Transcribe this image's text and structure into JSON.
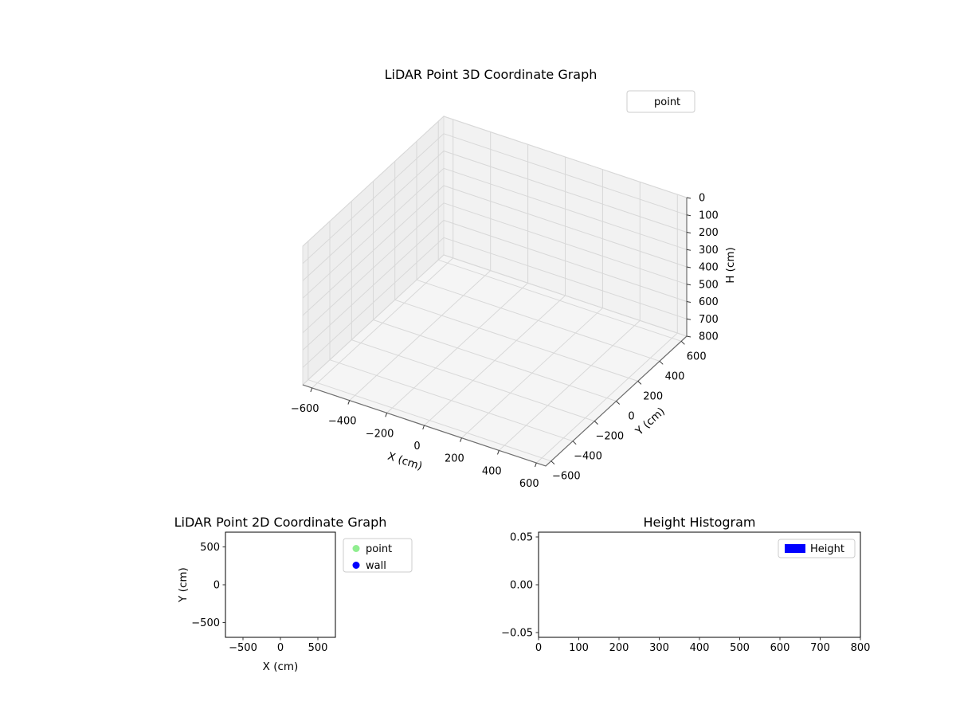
{
  "figure": {
    "background": "#ffffff"
  },
  "chart_data": [
    {
      "type": "scatter3d",
      "title": "LiDAR Point 3D Coordinate Graph",
      "xlabel": "X (cm)",
      "ylabel": "Y (cm)",
      "zlabel": "H (cm)",
      "xlim": [
        -650,
        650
      ],
      "ylim": [
        -650,
        650
      ],
      "zlim": [
        0,
        800
      ],
      "z_axis_inverted": true,
      "grid": true,
      "x_ticks": [
        "−600",
        "−400",
        "−200",
        "0",
        "200",
        "400",
        "600"
      ],
      "y_ticks": [
        "−600",
        "−400",
        "−200",
        "0",
        "200",
        "400",
        "600"
      ],
      "z_ticks": [
        "0",
        "100",
        "200",
        "300",
        "400",
        "500",
        "600",
        "700",
        "800"
      ],
      "legend": [
        {
          "label": "point"
        }
      ],
      "series": [
        {
          "name": "point",
          "points": []
        }
      ]
    },
    {
      "type": "scatter",
      "title": "LiDAR Point 2D Coordinate Graph",
      "xlabel": "X (cm)",
      "ylabel": "Y (cm)",
      "xlim": [
        -734,
        734
      ],
      "ylim": [
        -695,
        695
      ],
      "grid": false,
      "x_ticks": [
        "−500",
        "0",
        "500"
      ],
      "y_ticks": [
        "−500",
        "0",
        "500"
      ],
      "legend": [
        {
          "label": "point",
          "color": "#90EE90"
        },
        {
          "label": "wall",
          "color": "#0000FF"
        }
      ],
      "series": [
        {
          "name": "point",
          "color": "#90EE90",
          "points": []
        },
        {
          "name": "wall",
          "color": "#0000FF",
          "points": []
        }
      ]
    },
    {
      "type": "histogram",
      "title": "Height Histogram",
      "xlim": [
        0,
        800
      ],
      "ylim": [
        -0.055,
        0.055
      ],
      "grid": false,
      "x_ticks": [
        "0",
        "100",
        "200",
        "300",
        "400",
        "500",
        "600",
        "700",
        "800"
      ],
      "y_ticks": [
        "−0.05",
        "0.00",
        "0.05"
      ],
      "legend": [
        {
          "label": "Height",
          "color": "#0000FF"
        }
      ],
      "series": [
        {
          "name": "Height",
          "color": "#0000FF",
          "values": []
        }
      ]
    }
  ]
}
